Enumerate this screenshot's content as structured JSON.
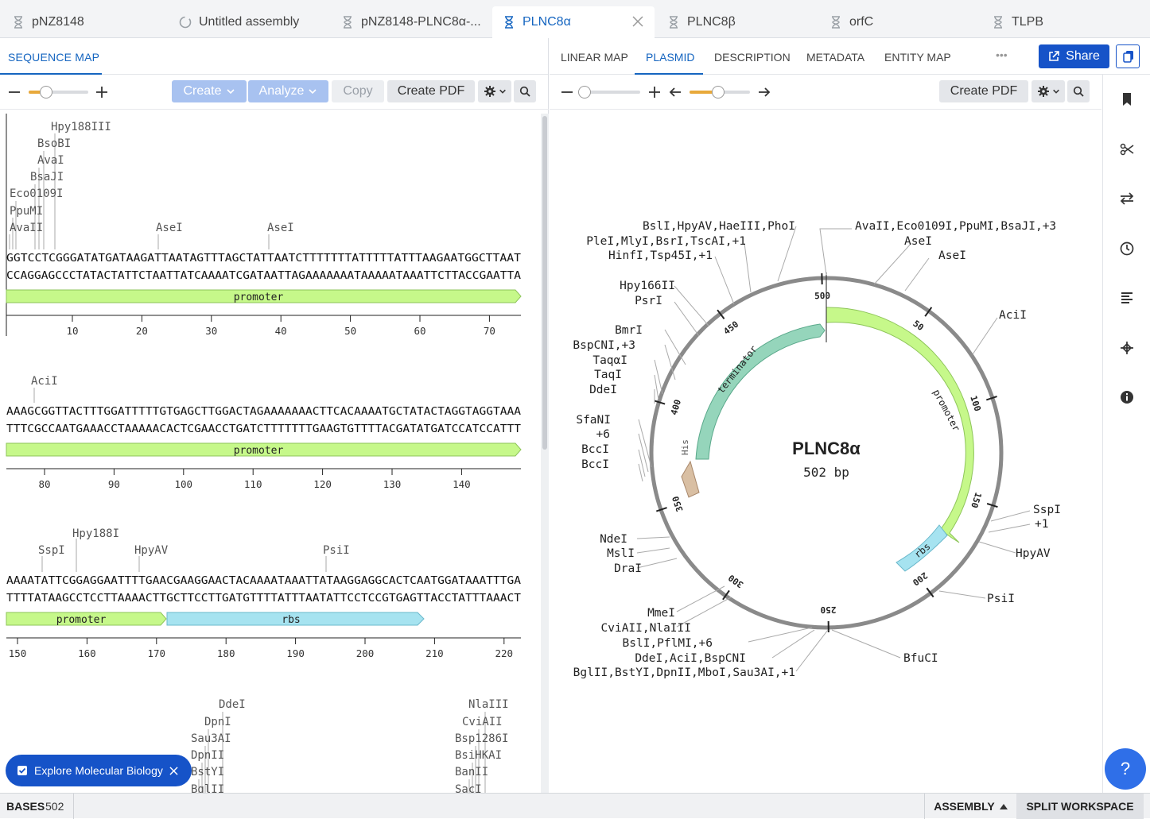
{
  "tabs": [
    {
      "label": "pNZ8148",
      "icon": "hourglass-icon",
      "active": false
    },
    {
      "label": "Untitled assembly",
      "icon": "assembly-spinner-icon",
      "active": false
    },
    {
      "label": "pNZ8148-PLNC8α-...",
      "icon": "hourglass-icon",
      "active": false
    },
    {
      "label": "PLNC8α",
      "icon": "hourglass-icon",
      "active": true
    },
    {
      "label": "PLNC8β",
      "icon": "hourglass-icon",
      "active": false
    },
    {
      "label": "orfC",
      "icon": "hourglass-icon",
      "active": false
    },
    {
      "label": "TLPB",
      "icon": "hourglass-icon",
      "active": false
    }
  ],
  "left": {
    "tab": "SEQUENCE MAP",
    "toolbar": {
      "create": "Create",
      "analyze": "Analyze",
      "copy": "Copy",
      "pdf": "Create PDF"
    },
    "rows": [
      {
        "top": "GGTCCTCGGGATATGATAAGATTAATAGTTTAGCTATTAATCTTTTTTTATTTTTATTTAAGAATGGCTTAAT",
        "bottom": "CCAGGAGCCCTATACTATTCTAATTATCAAAATCGATAATTAGAAAAAAATAAAAATAAATTCTTACCGAATTA",
        "features": [
          {
            "label": "promoter",
            "type": "promoter"
          }
        ],
        "ticks": [
          "10",
          "20",
          "30",
          "40",
          "50",
          "60",
          "70"
        ],
        "enzymes": [
          "Hpy188III",
          "BsoBI",
          "AvaI",
          "BsaJI",
          "Eco0109I",
          "PpuMI",
          "AvaII",
          "AseI",
          "AseI"
        ]
      },
      {
        "top": "AAAGCGGTTACTTTGGATTTTTGTGAGCTTGGACTAGAAAAAAACTTCACAAAATGCTATACTAGGTAGGTAAA",
        "bottom": "TTTCGCCAATGAAACCTAAAAACACTCGAACCTGATCTTTTTTTGAAGTGTTTTACGATATGATCCATCCATTT",
        "features": [
          {
            "label": "promoter",
            "type": "promoter"
          }
        ],
        "ticks": [
          "80",
          "90",
          "100",
          "110",
          "120",
          "130",
          "140"
        ],
        "enzymes": [
          "AciI"
        ]
      },
      {
        "top": "AAAATATTCGGAGGAATTTTGAACGAAGGAACTACAAAATAAATTATAAGGAGGCACTCAATGGATAAATTTGA",
        "bottom": "TTTTATAAGCCTCCTTAAAACTTGCTTCCTTGATGTTTTATTTAATATTCCTCCGTGAGTTACCTATTTAAACT",
        "features": [
          {
            "label": "promoter",
            "type": "promoter"
          },
          {
            "label": "rbs",
            "type": "rbs"
          }
        ],
        "ticks": [
          "150",
          "160",
          "170",
          "180",
          "190",
          "200",
          "210",
          "220"
        ],
        "enzymes": [
          "Hpy188I",
          "SspI",
          "HpyAV",
          "PsiI"
        ]
      },
      {
        "enzymes": [
          "DdeI",
          "DpnI",
          "Sau3AI",
          "DpnII",
          "BstYI",
          "BglII",
          "NlaIII",
          "CviAII",
          "Bsp1286I",
          "BsiHKAI",
          "BanII",
          "SacI"
        ]
      }
    ]
  },
  "right": {
    "tabs": [
      "LINEAR MAP",
      "PLASMID",
      "DESCRIPTION",
      "METADATA",
      "ENTITY MAP"
    ],
    "active_tab": "PLASMID",
    "more": "•••",
    "share": "Share",
    "pdf": "Create PDF",
    "plasmid": {
      "name": "PLNC8α",
      "length": "502 bp",
      "ring_ticks": [
        "500",
        "50",
        "100",
        "150",
        "200",
        "250",
        "300",
        "350",
        "400",
        "450"
      ],
      "features": [
        {
          "label": "promoter",
          "type": "promoter"
        },
        {
          "label": "rbs",
          "type": "rbs"
        },
        {
          "label": "terminator",
          "type": "terminator"
        },
        {
          "label": "His",
          "type": "cds"
        }
      ],
      "sites_right": [
        "AvaII,Eco0109I,PpuMI,BsaJI,+3",
        "AseI",
        "AseI",
        "AciI",
        "SspI",
        "+1",
        "HpyAV",
        "PsiI",
        "BfuCI"
      ],
      "sites_left": [
        "BslI,HpyAV,HaeIII,PhoI",
        "PleI,MlyI,BsrI,TscAI,+1",
        "HinfI,Tsp45I,+1",
        "Hpy166II",
        "PsrI",
        "BmrI",
        "BspCNI,+3",
        "TaqαI",
        "TaqI",
        "DdeI",
        "SfaNI",
        "+6",
        "BccI",
        "BccI",
        "NdeI",
        "MslI",
        "DraI",
        "MmeI",
        "CviAII,NlaIII",
        "BslI,PflMI,+6",
        "DdeI,AciI,BspCNI",
        "BglII,BstYI,DpnII,MboI,Sau3AI,+1"
      ]
    }
  },
  "sidebar_icons": [
    "bookmark-icon",
    "scissors-icon",
    "swap-icon",
    "history-icon",
    "align-icon",
    "target-icon",
    "info-icon"
  ],
  "bottom": {
    "bases_label": "BASES",
    "bases_value": "502",
    "assembly": "ASSEMBLY",
    "split": "SPLIT WORKSPACE"
  },
  "explore": "Explore Molecular Biology",
  "help": "?",
  "colors": {
    "promoter": "#c6f88a",
    "rbs": "#a6e3f0",
    "terminator": "#95d5bb",
    "cds": "#d9bfa3",
    "accent": "#1653c8"
  }
}
